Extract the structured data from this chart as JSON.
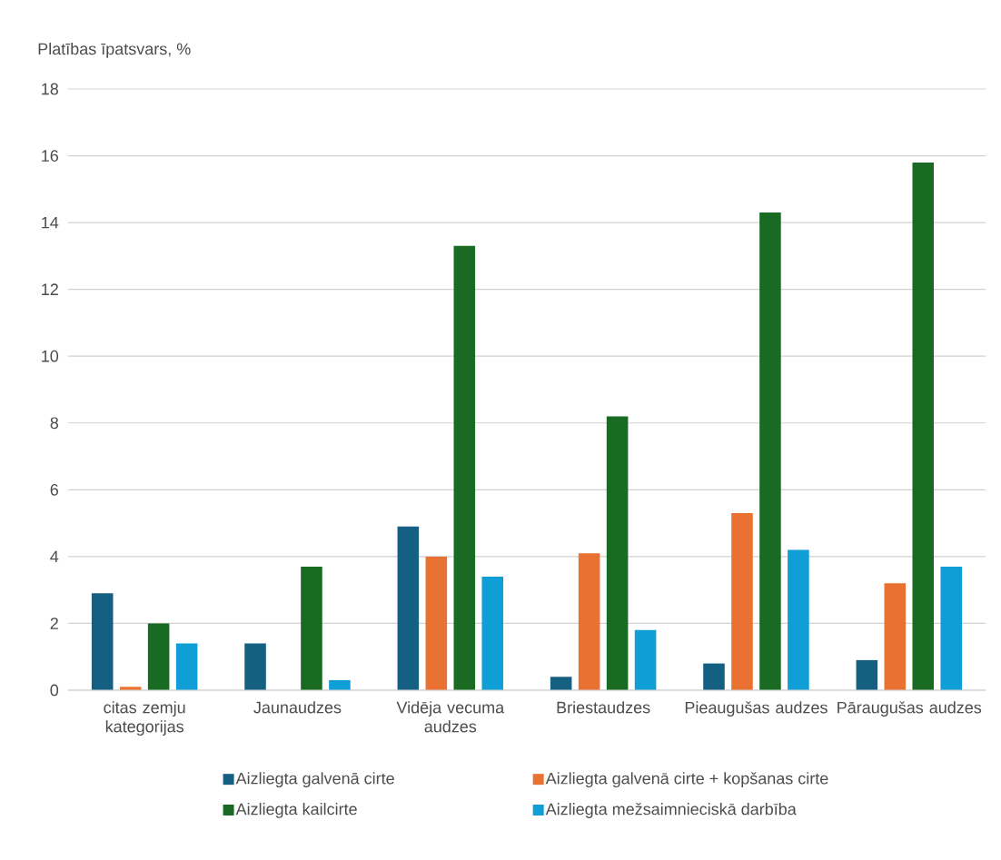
{
  "chart_data": {
    "type": "bar",
    "ylabel": "Platības īpatsvars, %",
    "categories": [
      "citas zemju kategorijas",
      "Jaunaudzes",
      "Vidēja vecuma audzes",
      "Briestaudzes",
      "Pieaugušas audzes",
      "Pāraugušas audzes"
    ],
    "series": [
      {
        "name": "Aizliegta galvenā cirte",
        "color": "#156082",
        "values": [
          2.9,
          1.4,
          4.9,
          0.4,
          0.8,
          0.9
        ]
      },
      {
        "name": "Aizliegta galvenā cirte + kopšanas cirte",
        "color": "#e97132",
        "values": [
          0.1,
          null,
          4.0,
          4.1,
          5.3,
          3.2
        ]
      },
      {
        "name": "Aizliegta kailcirte",
        "color": "#196b24",
        "values": [
          2.0,
          3.7,
          13.3,
          8.2,
          14.3,
          15.8
        ]
      },
      {
        "name": "Aizliegta mežsaimnieciskā darbība",
        "color": "#0f9ed5",
        "values": [
          1.4,
          0.3,
          3.4,
          1.8,
          4.2,
          3.7
        ]
      }
    ],
    "ylim": [
      0,
      18
    ],
    "yticks": [
      0,
      2,
      4,
      6,
      8,
      10,
      12,
      14,
      16,
      18
    ],
    "grid": "y",
    "legend": "bottom"
  }
}
